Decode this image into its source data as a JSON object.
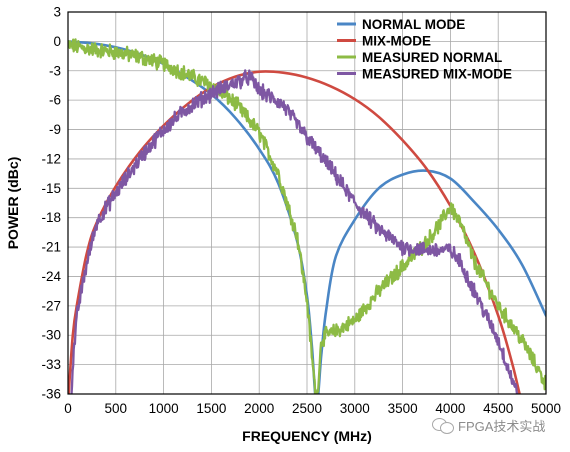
{
  "chart_data": {
    "type": "line",
    "title": "",
    "xlabel": "FREQUENCY (MHz)",
    "ylabel": "POWER (dBc)",
    "xlim": [
      0,
      5000
    ],
    "ylim": [
      -36,
      3
    ],
    "xticks": [
      0,
      500,
      1000,
      1500,
      2000,
      2500,
      3000,
      3500,
      4000,
      4500,
      5000
    ],
    "yticks": [
      3,
      0,
      -3,
      -6,
      -9,
      -12,
      -15,
      -18,
      -21,
      -24,
      -27,
      -30,
      -33,
      -36
    ],
    "grid": true,
    "legend_position": "top-right",
    "series": [
      {
        "name": "NORMAL MODE",
        "color": "#4a86c5",
        "style": "smooth",
        "x": [
          0,
          250,
          500,
          750,
          1000,
          1250,
          1500,
          1750,
          2000,
          2200,
          2400,
          2500,
          2550,
          2600,
          2650,
          2700,
          2800,
          3000,
          3250,
          3500,
          3750,
          4000,
          4250,
          4500,
          4750,
          5000
        ],
        "y": [
          0,
          -0.2,
          -0.6,
          -1.3,
          -2.3,
          -3.7,
          -5.4,
          -7.8,
          -11,
          -14.5,
          -20.5,
          -26,
          -31,
          -37,
          -32,
          -27.5,
          -22,
          -18.2,
          -15,
          -13.6,
          -13.2,
          -14,
          -16.4,
          -19.2,
          -22.8,
          -28
        ]
      },
      {
        "name": "MIX-MODE",
        "color": "#cf4a41",
        "style": "smooth",
        "x": [
          0,
          50,
          100,
          200,
          300,
          500,
          750,
          1000,
          1250,
          1500,
          1750,
          2000,
          2250,
          2500,
          2750,
          3000,
          3250,
          3500,
          3750,
          4000,
          4250,
          4500,
          4650,
          4750,
          4850
        ],
        "y": [
          -37,
          -30,
          -26.5,
          -21.5,
          -18.5,
          -14.8,
          -11.3,
          -8.6,
          -6.4,
          -4.7,
          -3.6,
          -3.1,
          -3.2,
          -3.7,
          -4.6,
          -5.9,
          -7.7,
          -10.1,
          -13,
          -16.8,
          -21.6,
          -28,
          -33,
          -37,
          -40
        ]
      },
      {
        "name": "MEASURED NORMAL",
        "color": "#8dbb45",
        "style": "noisy",
        "x": [
          0,
          250,
          500,
          750,
          1000,
          1250,
          1500,
          1750,
          2000,
          2200,
          2400,
          2500,
          2550,
          2600,
          2650,
          2700,
          2800,
          3000,
          3250,
          3500,
          3750,
          3900,
          4000,
          4100,
          4250,
          4500,
          4750,
          5000
        ],
        "y": [
          -0.4,
          -0.8,
          -1.1,
          -1.6,
          -2.3,
          -3.4,
          -4.5,
          -6.3,
          -9.3,
          -13.5,
          -20,
          -26.5,
          -32,
          -37,
          -30.5,
          -30,
          -29.6,
          -28.5,
          -25.5,
          -23,
          -20.5,
          -18.5,
          -16.8,
          -18.5,
          -22.5,
          -27,
          -30.5,
          -35
        ]
      },
      {
        "name": "MEASURED MIX-MODE",
        "color": "#7e57a3",
        "style": "noisy",
        "x": [
          30,
          50,
          100,
          200,
          300,
          500,
          750,
          1000,
          1250,
          1500,
          1750,
          1900,
          2000,
          2250,
          2500,
          2750,
          3000,
          3250,
          3500,
          3750,
          4000,
          4100,
          4250,
          4500,
          4700
        ],
        "y": [
          -37,
          -33,
          -27.5,
          -22.5,
          -18.5,
          -15.5,
          -12,
          -9,
          -6.8,
          -5.3,
          -4.2,
          -3.6,
          -5,
          -6.5,
          -9.8,
          -13,
          -16.5,
          -19.2,
          -21,
          -21.3,
          -21.3,
          -22.5,
          -25.5,
          -30.5,
          -36
        ]
      }
    ]
  },
  "watermark": {
    "text": "FPGA技术实战"
  }
}
